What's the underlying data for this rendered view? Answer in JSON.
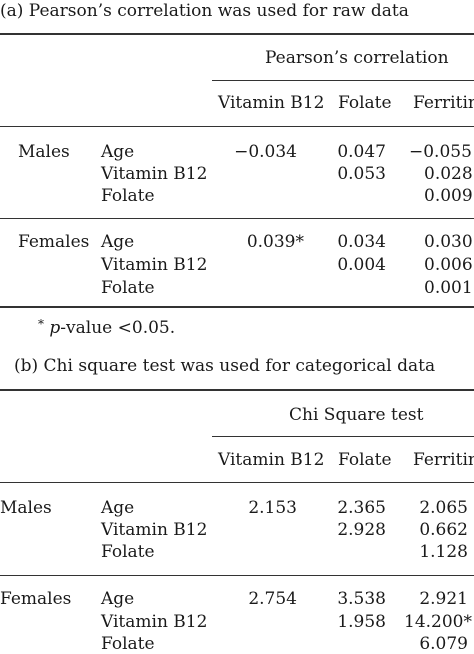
{
  "panel_a": {
    "caption": "(a) Pearson’s correlation was used for raw data",
    "group_header": "Pearson’s correlation",
    "columns": [
      "Vitamin B12",
      "Folate",
      "Ferritin"
    ],
    "groups": [
      {
        "label": "Males",
        "rows": [
          {
            "var": "Age",
            "values": [
              "−0.034",
              "0.047",
              "−0.055"
            ]
          },
          {
            "var": "Vitamin B12",
            "values": [
              "",
              "0.053",
              "0.028"
            ]
          },
          {
            "var": "Folate",
            "values": [
              "",
              "",
              "0.009"
            ]
          }
        ]
      },
      {
        "label": "Females",
        "rows": [
          {
            "var": "Age",
            "values": [
              "0.039*",
              "0.034",
              "0.030"
            ]
          },
          {
            "var": "Vitamin B12",
            "values": [
              "",
              "0.004",
              "0.006"
            ]
          },
          {
            "var": "Folate",
            "values": [
              "",
              "",
              "0.001"
            ]
          }
        ]
      }
    ],
    "footnote_star": "*",
    "footnote_p": "p",
    "footnote_rest": "-value <0.05."
  },
  "panel_b": {
    "caption": "(b) Chi square test was used for categorical data",
    "group_header": "Chi Square test",
    "columns": [
      "Vitamin B12",
      "Folate",
      "Ferritin"
    ],
    "groups": [
      {
        "label": "Males",
        "rows": [
          {
            "var": "Age",
            "values": [
              "2.153",
              "2.365",
              "2.065"
            ]
          },
          {
            "var": "Vitamin B12",
            "values": [
              "",
              "2.928",
              "0.662"
            ]
          },
          {
            "var": "Folate",
            "values": [
              "",
              "",
              "1.128"
            ]
          }
        ]
      },
      {
        "label": "Females",
        "rows": [
          {
            "var": "Age",
            "values": [
              "2.754",
              "3.538",
              "2.921"
            ]
          },
          {
            "var": "Vitamin B12",
            "values": [
              "",
              "1.958",
              "14.200*"
            ]
          },
          {
            "var": "Folate",
            "values": [
              "",
              "",
              "6.079"
            ]
          }
        ]
      }
    ]
  }
}
